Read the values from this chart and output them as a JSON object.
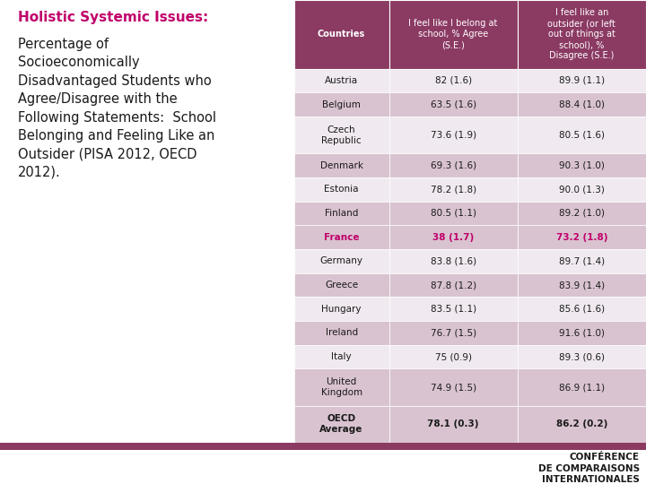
{
  "title_bold": "Holistic Systemic Issues:",
  "subtitle": "Percentage of\nSocioeconomically\nDisadvantaged Students who\nAgree/Disagree with the\nFollowing Statements:  School\nBelonging and Feeling Like an\nOutsider (PISA 2012, OECD\n2012).",
  "header_color": "#8B3A62",
  "header_text_color": "#FFFFFF",
  "alt_row_color": "#D9C3D0",
  "white_row_color": "#F0EAF0",
  "france_color": "#C0006A",
  "col_headers": [
    "Countries",
    "I feel like I belong at\nschool, % Agree\n(S.E.)",
    "I feel like an\noutsider (or left\nout of things at\nschool), %\nDisagree (S.E.)"
  ],
  "rows": [
    {
      "country": "Austria",
      "col1": "82 (1.6)",
      "col2": "89.9 (1.1)",
      "highlight": false,
      "two_line": false,
      "bold": false
    },
    {
      "country": "Belgium",
      "col1": "63.5 (1.6)",
      "col2": "88.4 (1.0)",
      "highlight": false,
      "two_line": false,
      "bold": false
    },
    {
      "country": "Czech\nRepublic",
      "col1": "73.6 (1.9)",
      "col2": "80.5 (1.6)",
      "highlight": false,
      "two_line": true,
      "bold": false
    },
    {
      "country": "Denmark",
      "col1": "69.3 (1.6)",
      "col2": "90.3 (1.0)",
      "highlight": false,
      "two_line": false,
      "bold": false
    },
    {
      "country": "Estonia",
      "col1": "78.2 (1.8)",
      "col2": "90.0 (1.3)",
      "highlight": false,
      "two_line": false,
      "bold": false
    },
    {
      "country": "Finland",
      "col1": "80.5 (1.1)",
      "col2": "89.2 (1.0)",
      "highlight": false,
      "two_line": false,
      "bold": false
    },
    {
      "country": "France",
      "col1": "38 (1.7)",
      "col2": "73.2 (1.8)",
      "highlight": true,
      "two_line": false,
      "bold": true
    },
    {
      "country": "Germany",
      "col1": "83.8 (1.6)",
      "col2": "89.7 (1.4)",
      "highlight": false,
      "two_line": false,
      "bold": false
    },
    {
      "country": "Greece",
      "col1": "87.8 (1.2)",
      "col2": "83.9 (1.4)",
      "highlight": false,
      "two_line": false,
      "bold": false
    },
    {
      "country": "Hungary",
      "col1": "83.5 (1.1)",
      "col2": "85.6 (1.6)",
      "highlight": false,
      "two_line": false,
      "bold": false
    },
    {
      "country": "Ireland",
      "col1": "76.7 (1.5)",
      "col2": "91.6 (1.0)",
      "highlight": false,
      "two_line": false,
      "bold": false
    },
    {
      "country": "Italy",
      "col1": "75 (0.9)",
      "col2": "89.3 (0.6)",
      "highlight": false,
      "two_line": false,
      "bold": false
    },
    {
      "country": "United\nKingdom",
      "col1": "74.9 (1.5)",
      "col2": "86.9 (1.1)",
      "highlight": false,
      "two_line": true,
      "bold": false
    },
    {
      "country": "OECD\nAverage",
      "col1": "78.1 (0.3)",
      "col2": "86.2 (0.2)",
      "highlight": false,
      "two_line": true,
      "bold": true
    }
  ],
  "footer_bar_color": "#8B3A62",
  "bg_color": "#FFFFFF",
  "title_color": "#C0006A",
  "conf_text": "CONFÉRENCE\nDE COMPARAISONS\nINTERNATIONALES"
}
